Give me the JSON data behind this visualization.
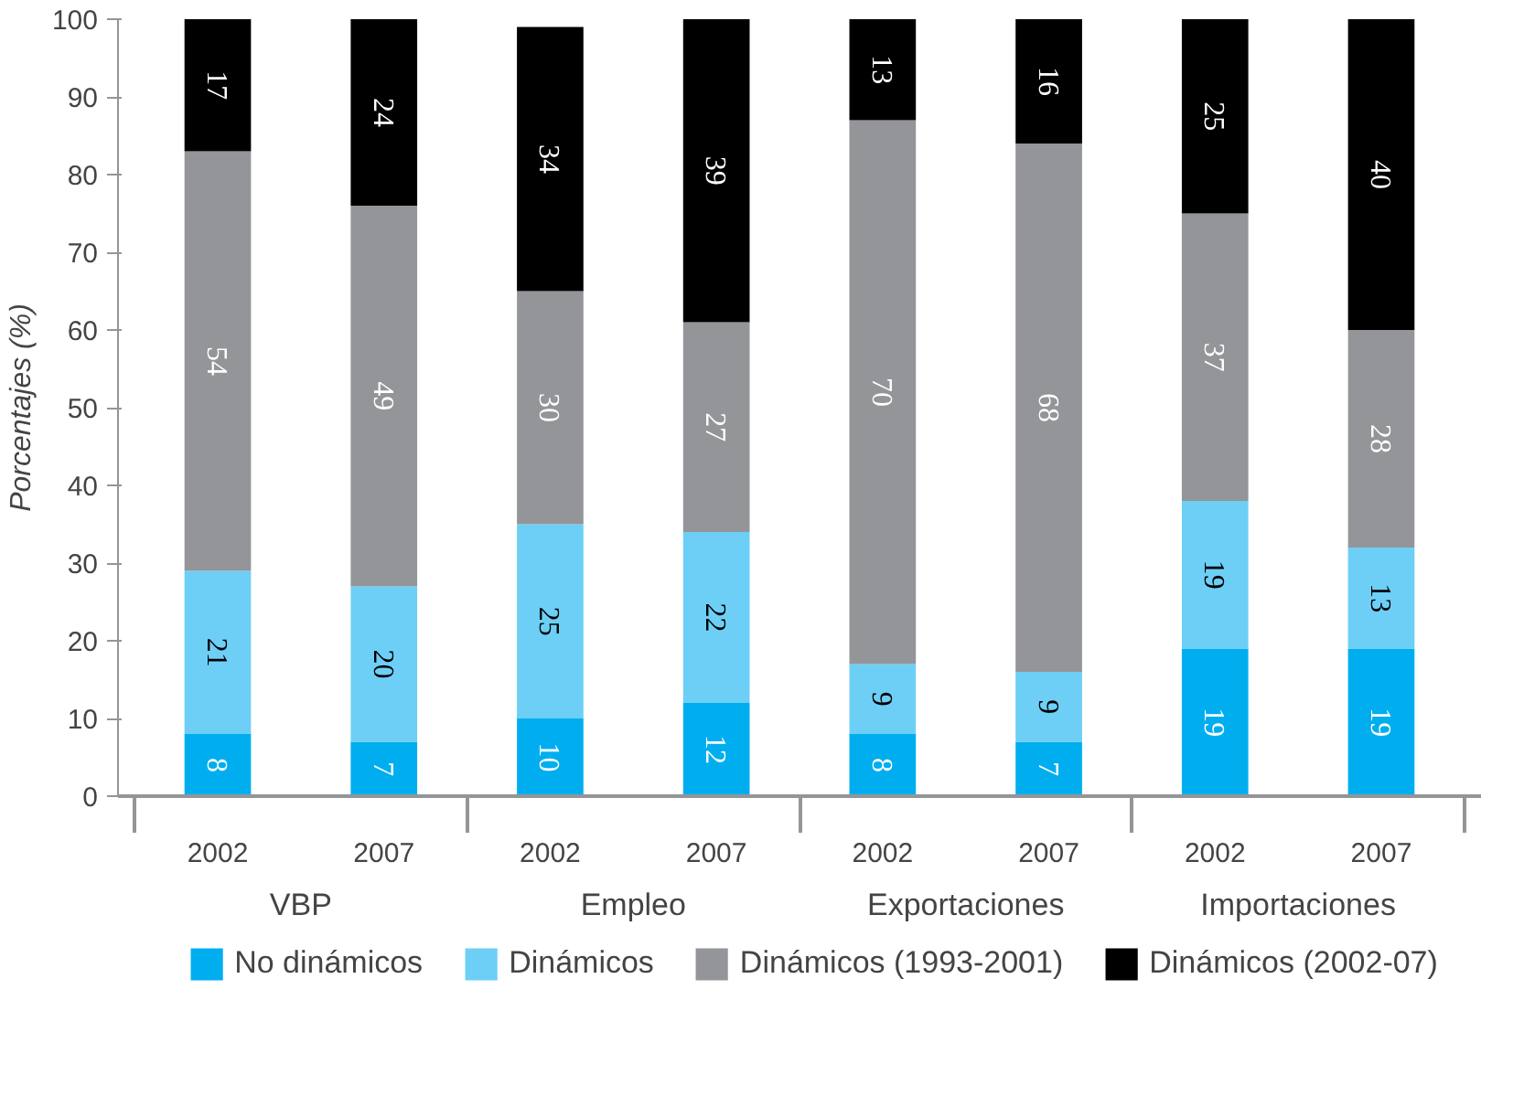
{
  "chart_data": {
    "type": "bar",
    "stacked": true,
    "ylabel": "Porcentajes (%)",
    "categories": [
      "2002",
      "2007",
      "2002",
      "2007",
      "2002",
      "2007",
      "2002",
      "2007"
    ],
    "annotations": [
      "VBP",
      "Empleo",
      "Exportaciones",
      "Importaciones"
    ],
    "series": [
      {
        "name": "No dinámicos",
        "color": "#00aeef",
        "values": [
          8,
          7,
          10,
          12,
          8,
          7,
          19,
          19
        ]
      },
      {
        "name": "Dinámicos",
        "color": "#6dcff6",
        "values": [
          21,
          20,
          25,
          22,
          9,
          9,
          19,
          13
        ]
      },
      {
        "name": "Dinámicos (1993-2001)",
        "color": "#939598",
        "values": [
          54,
          49,
          30,
          27,
          70,
          68,
          37,
          28
        ]
      },
      {
        "name": "Dinámicos (2002-07)",
        "color": "#000000",
        "values": [
          17,
          24,
          34,
          39,
          13,
          16,
          25,
          40
        ]
      }
    ],
    "ylim": [
      0,
      100
    ],
    "yticks": [
      0,
      10,
      20,
      30,
      40,
      50,
      60,
      70,
      80,
      90,
      100
    ],
    "data_labels": true,
    "legend": "bottom",
    "grid": false
  }
}
